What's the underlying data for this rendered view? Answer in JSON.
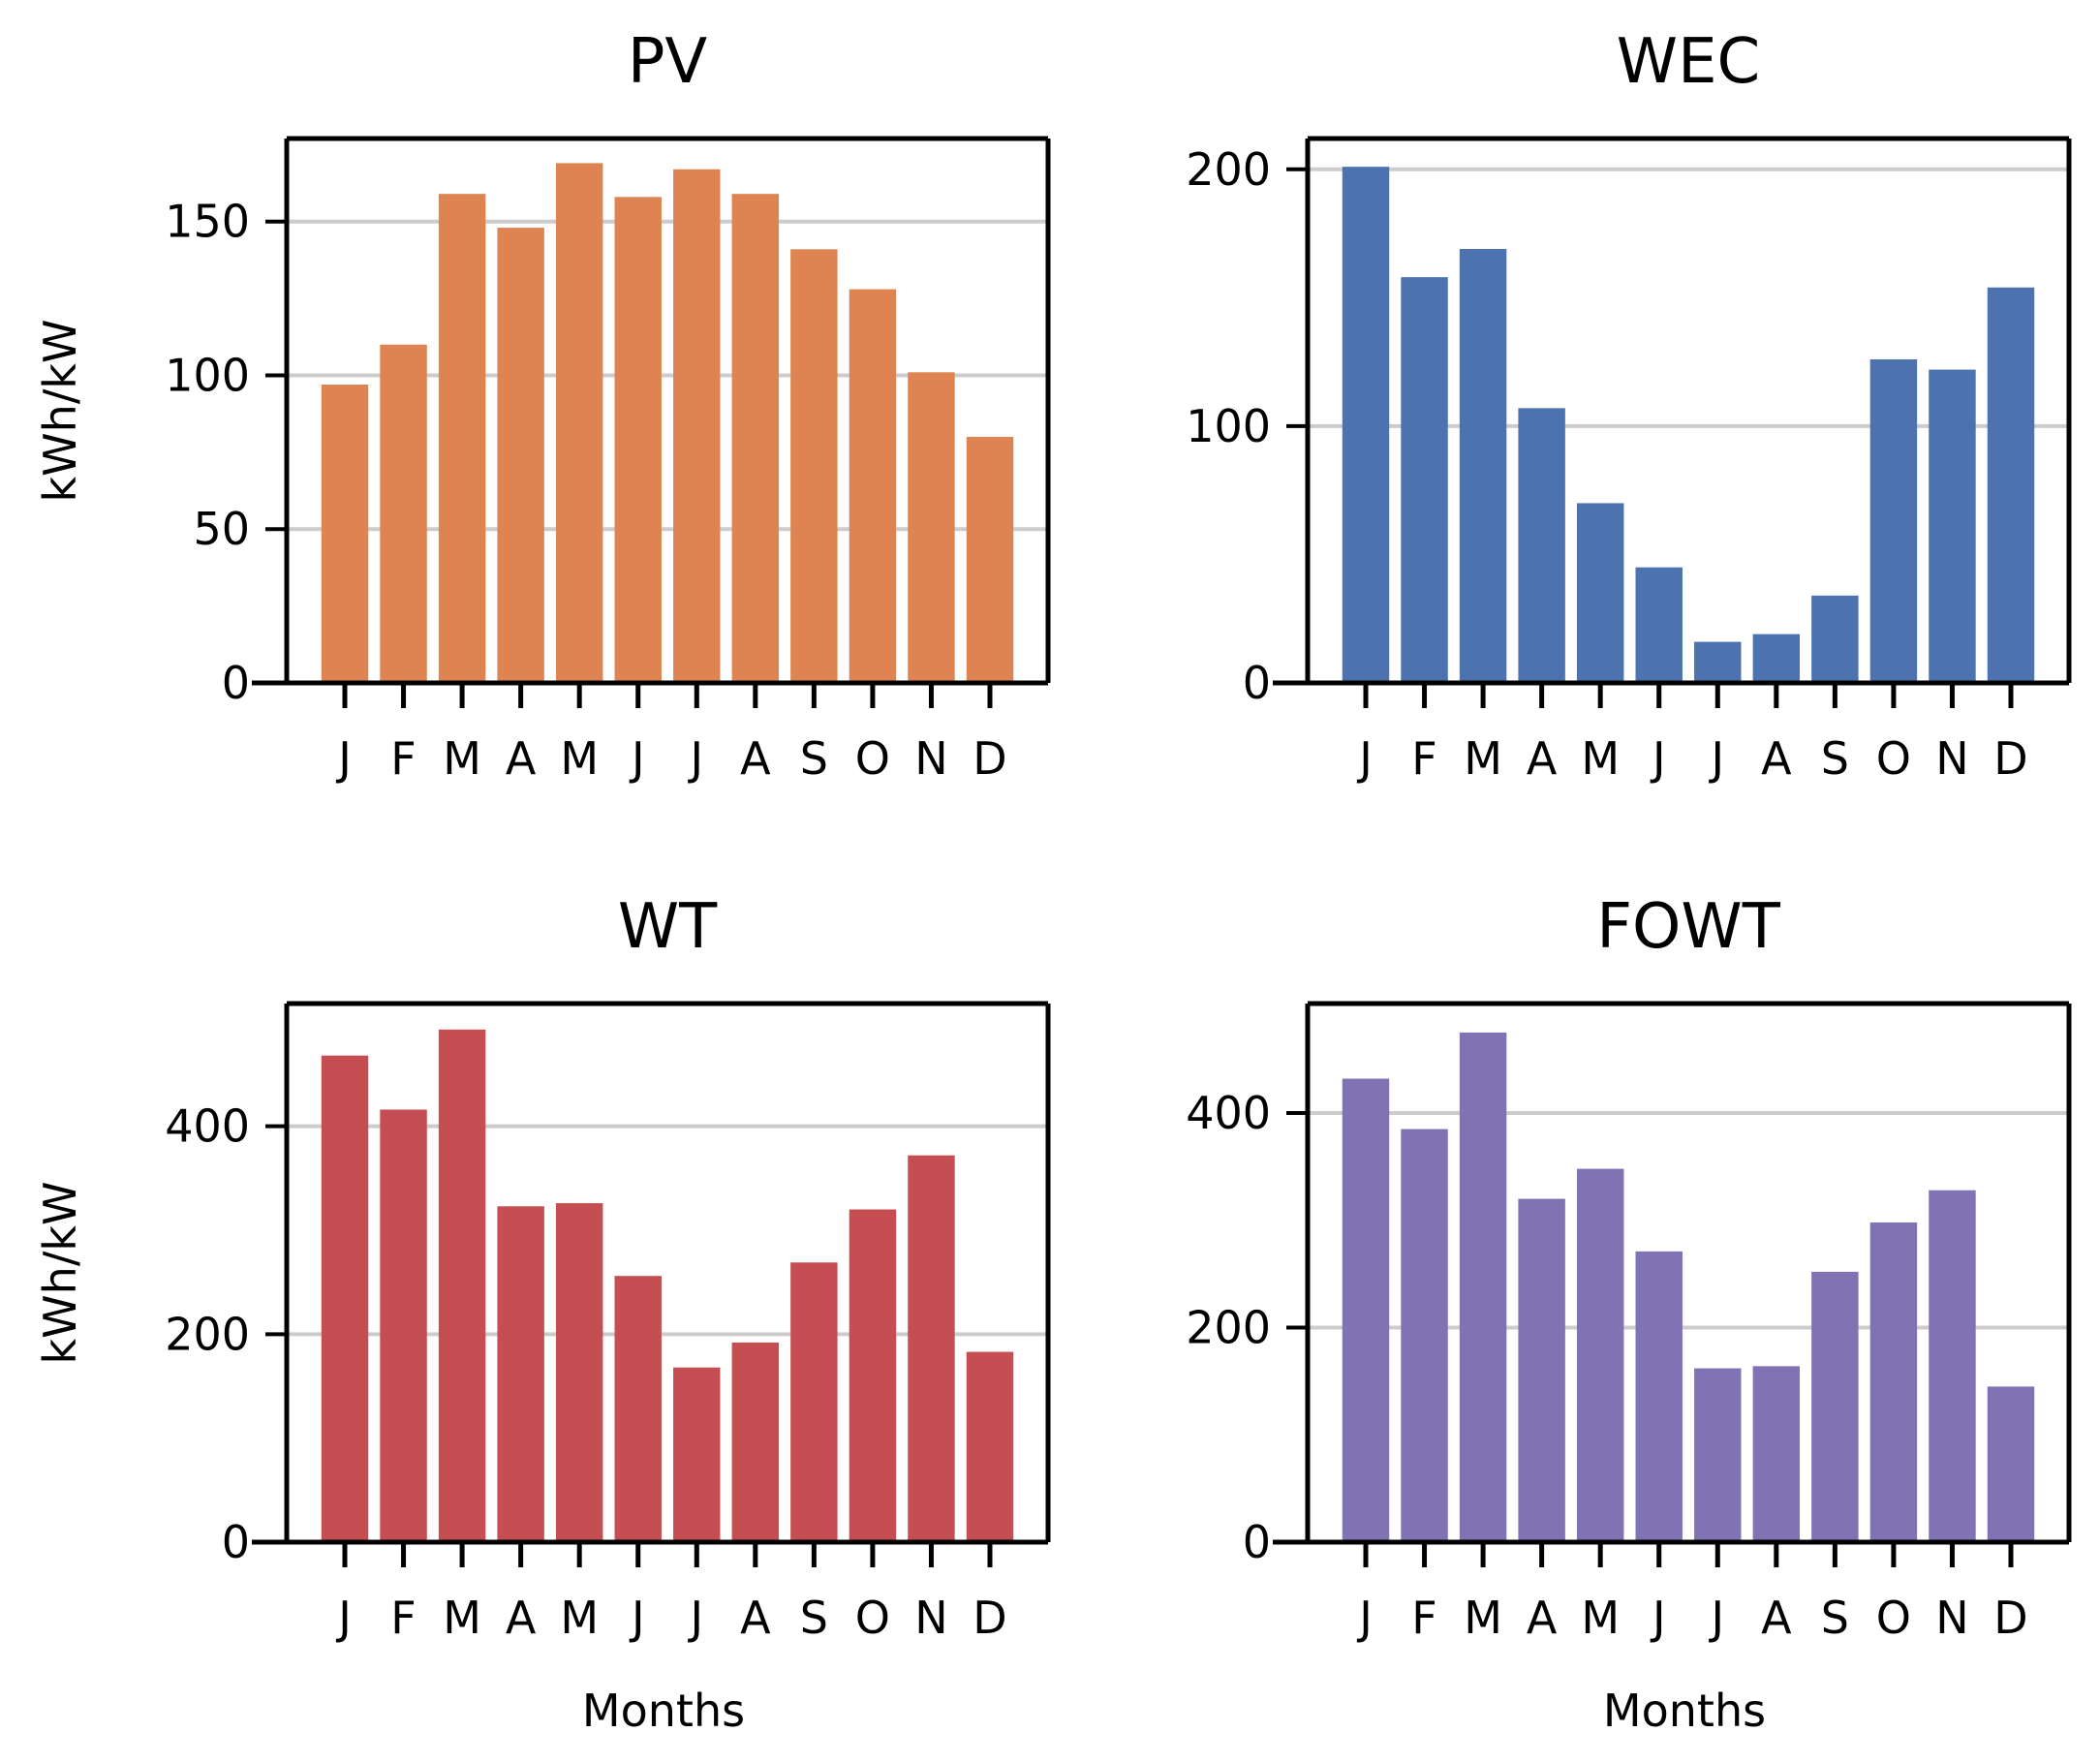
{
  "figure": {
    "layout": "2x2 grid",
    "shared_categories": [
      "J",
      "F",
      "M",
      "A",
      "M",
      "J",
      "J",
      "A",
      "S",
      "O",
      "N",
      "D"
    ]
  },
  "chart_data": [
    {
      "type": "bar",
      "title": "PV",
      "categories": [
        "J",
        "F",
        "M",
        "A",
        "M",
        "J",
        "J",
        "A",
        "S",
        "O",
        "N",
        "D"
      ],
      "values": [
        97,
        110,
        159,
        148,
        169,
        158,
        167,
        159,
        141,
        128,
        101,
        80
      ],
      "xlabel": "",
      "ylabel": "kWh/kW",
      "ylim": [
        0,
        177
      ],
      "yticks": [
        0,
        50,
        100,
        150
      ],
      "grid": "horizontal",
      "color": "#dd8452"
    },
    {
      "type": "bar",
      "title": "WEC",
      "categories": [
        "J",
        "F",
        "M",
        "A",
        "M",
        "J",
        "J",
        "A",
        "S",
        "O",
        "N",
        "D"
      ],
      "values": [
        201,
        158,
        169,
        107,
        70,
        45,
        16,
        19,
        34,
        126,
        122,
        154
      ],
      "xlabel": "",
      "ylabel": "",
      "ylim": [
        0,
        212
      ],
      "yticks": [
        0,
        100,
        200
      ],
      "grid": "horizontal",
      "color": "#4c72b0"
    },
    {
      "type": "bar",
      "title": "WT",
      "categories": [
        "J",
        "F",
        "M",
        "A",
        "M",
        "J",
        "J",
        "A",
        "S",
        "O",
        "N",
        "D"
      ],
      "values": [
        468,
        416,
        493,
        323,
        326,
        256,
        168,
        192,
        269,
        320,
        372,
        183
      ],
      "xlabel": "Months",
      "ylabel": "kWh/kW",
      "ylim": [
        0,
        518
      ],
      "yticks": [
        0,
        200,
        400
      ],
      "grid": "horizontal",
      "color": "#c44e52"
    },
    {
      "type": "bar",
      "title": "FOWT",
      "categories": [
        "J",
        "F",
        "M",
        "A",
        "M",
        "J",
        "J",
        "A",
        "S",
        "O",
        "N",
        "D"
      ],
      "values": [
        432,
        385,
        475,
        320,
        348,
        271,
        162,
        164,
        252,
        298,
        328,
        145
      ],
      "xlabel": "Months",
      "ylabel": "",
      "ylim": [
        0,
        502
      ],
      "yticks": [
        0,
        200,
        400
      ],
      "grid": "horizontal",
      "color": "#8172b3"
    }
  ]
}
